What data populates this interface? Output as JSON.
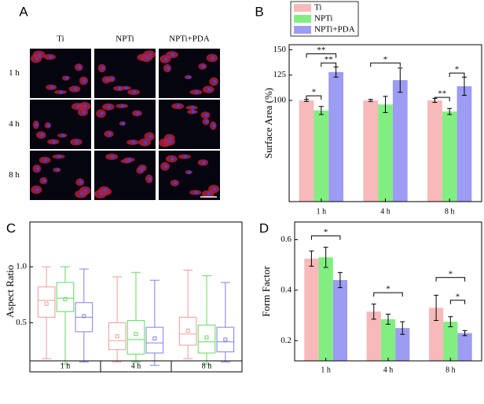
{
  "micrograph": {
    "label": "A",
    "columns": [
      "Ti",
      "NPTi",
      "NPTi+PDA"
    ],
    "rows": [
      "1 h",
      "4 h",
      "8 h"
    ]
  },
  "chart_data": [
    {
      "type": "bar",
      "label": "B",
      "y_label": "Surface Area (%)",
      "categories": [
        "1 h",
        "4 h",
        "8 h"
      ],
      "series": [
        {
          "name": "Ti",
          "color": "#f7b9b9",
          "values": [
            100,
            100,
            100
          ],
          "errors": [
            1,
            1,
            2
          ]
        },
        {
          "name": "NPTi",
          "color": "#82ee82",
          "values": [
            90,
            96,
            89
          ],
          "errors": [
            4,
            8,
            3
          ]
        },
        {
          "name": "NPTi+PDA",
          "color": "#9c9cf2",
          "values": [
            128,
            120,
            114
          ],
          "errors": [
            5,
            12,
            9
          ]
        }
      ],
      "ylim": [
        0,
        155
      ],
      "yticks": [
        100,
        125,
        150
      ],
      "legend": "top-left",
      "annotations": [
        {
          "text": "*",
          "category": 0,
          "from": 0,
          "to": 1,
          "y": 104.5
        },
        {
          "text": "**",
          "category": 0,
          "from": 1,
          "to": 2,
          "y": 137
        },
        {
          "text": "**",
          "category": 0,
          "from": 0,
          "to": 2,
          "y": 146
        },
        {
          "text": "*",
          "category": 1,
          "from": 0,
          "to": 2,
          "y": 137
        },
        {
          "text": "**",
          "category": 2,
          "from": 0,
          "to": 1,
          "y": 103
        },
        {
          "text": "*",
          "category": 2,
          "from": 1,
          "to": 2,
          "y": 127
        }
      ]
    },
    {
      "type": "box",
      "label": "C",
      "y_label": "Aspect Ratio",
      "categories": [
        "1 h",
        "4 h",
        "8 h"
      ],
      "series": [
        {
          "color": "#f29a9a",
          "boxes": [
            {
              "min": 0.18,
              "q1": 0.55,
              "median": 0.7,
              "q3": 0.82,
              "max": 1.0,
              "mean": 0.67
            },
            {
              "min": 0.15,
              "q1": 0.26,
              "median": 0.34,
              "q3": 0.5,
              "max": 0.91,
              "mean": 0.38
            },
            {
              "min": 0.18,
              "q1": 0.3,
              "median": 0.4,
              "q3": 0.55,
              "max": 0.97,
              "mean": 0.43
            }
          ]
        },
        {
          "color": "#5fdc5f",
          "boxes": [
            {
              "min": 0.13,
              "q1": 0.6,
              "median": 0.72,
              "q3": 0.86,
              "max": 1.0,
              "mean": 0.71
            },
            {
              "min": 0.15,
              "q1": 0.22,
              "median": 0.35,
              "q3": 0.52,
              "max": 0.95,
              "mean": 0.4
            },
            {
              "min": 0.13,
              "q1": 0.23,
              "median": 0.33,
              "q3": 0.48,
              "max": 0.92,
              "mean": 0.37
            }
          ]
        },
        {
          "color": "#8080e8",
          "boxes": [
            {
              "min": 0.15,
              "q1": 0.42,
              "median": 0.55,
              "q3": 0.68,
              "max": 0.98,
              "mean": 0.56
            },
            {
              "min": 0.12,
              "q1": 0.23,
              "median": 0.32,
              "q3": 0.46,
              "max": 0.88,
              "mean": 0.36
            },
            {
              "min": 0.15,
              "q1": 0.24,
              "median": 0.33,
              "q3": 0.46,
              "max": 0.86,
              "mean": 0.35
            }
          ]
        }
      ],
      "ylim": [
        0.16,
        1.4
      ],
      "yticks": [
        0.5,
        {
          "value": 1.0,
          "label": "1.0"
        }
      ]
    },
    {
      "type": "bar",
      "label": "D",
      "y_label": "Form Factor",
      "categories": [
        "1 h",
        "4 h",
        "8 h"
      ],
      "series": [
        {
          "color": "#f7b9b9",
          "values": [
            0.525,
            0.315,
            0.33
          ],
          "errors": [
            0.03,
            0.03,
            0.05
          ]
        },
        {
          "color": "#82ee82",
          "values": [
            0.53,
            0.285,
            0.275
          ],
          "errors": [
            0.04,
            0.02,
            0.02
          ]
        },
        {
          "color": "#9c9cf2",
          "values": [
            0.44,
            0.25,
            0.23
          ],
          "errors": [
            0.03,
            0.025,
            0.01
          ]
        }
      ],
      "ylim": [
        0.12,
        0.67
      ],
      "yticks": [
        0.2,
        0.4,
        0.6
      ],
      "annotations": [
        {
          "text": "*",
          "category": 0,
          "from": 0,
          "to": 2,
          "y": 0.615
        },
        {
          "text": "*",
          "category": 1,
          "from": 0,
          "to": 2,
          "y": 0.39
        },
        {
          "text": "*",
          "category": 2,
          "from": 0,
          "to": 2,
          "y": 0.45
        },
        {
          "text": "*",
          "category": 2,
          "from": 1,
          "to": 2,
          "y": 0.36
        }
      ]
    }
  ]
}
